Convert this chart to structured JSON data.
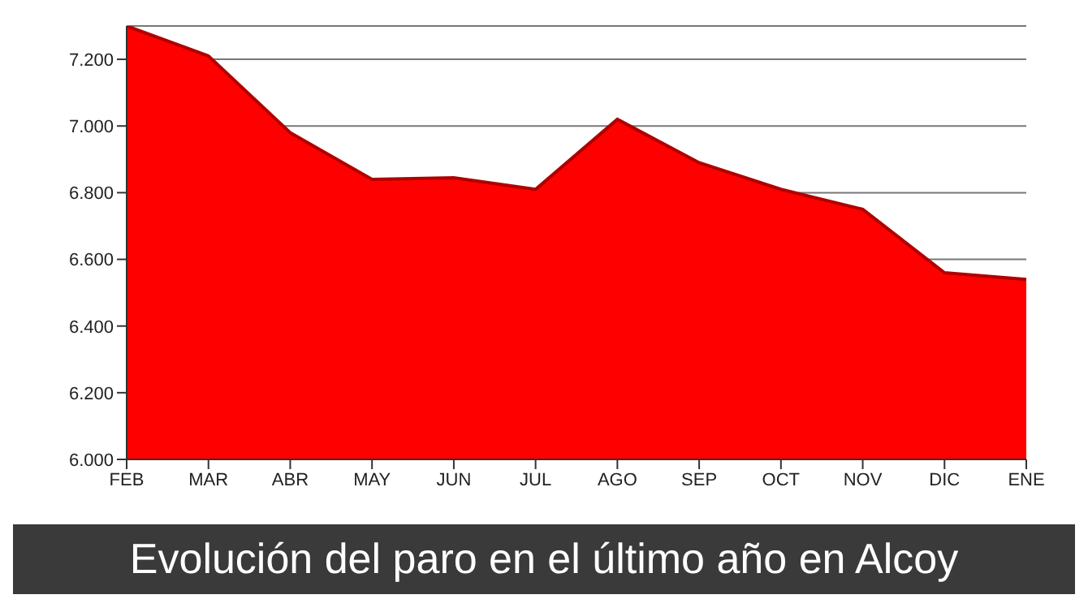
{
  "chart_data": {
    "type": "area",
    "title": "Evolución del paro en el último año en Alcoy",
    "categories": [
      "FEB",
      "MAR",
      "ABR",
      "MAY",
      "JUN",
      "JUL",
      "AGO",
      "SEP",
      "OCT",
      "NOV",
      "DIC",
      "ENE"
    ],
    "series": [
      {
        "color": "#ff0000",
        "values": [
          7300,
          7210,
          6980,
          6840,
          6845,
          6810,
          7020,
          6890,
          6810,
          6750,
          6560,
          6540
        ]
      }
    ],
    "ylim": [
      6000,
      7300
    ],
    "yticks": [
      {
        "value": 6000,
        "label": "6.000"
      },
      {
        "value": 6200,
        "label": "6.200"
      },
      {
        "value": 6400,
        "label": "6.400"
      },
      {
        "value": 6600,
        "label": "6.600"
      },
      {
        "value": 6800,
        "label": "6.800"
      },
      {
        "value": 7000,
        "label": "7.000"
      },
      {
        "value": 7200,
        "label": "7.200"
      }
    ],
    "grid": "y"
  }
}
